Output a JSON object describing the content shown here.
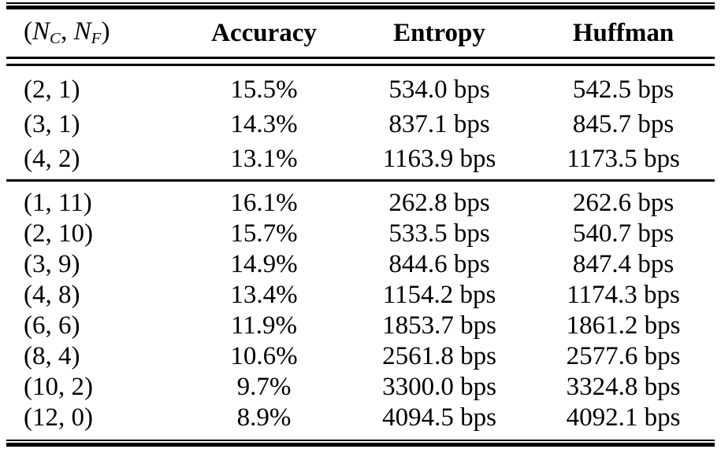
{
  "colors": {
    "text": "#000000",
    "background": "#ffffff",
    "rule": "#000000"
  },
  "table": {
    "header": {
      "col1": {
        "open": "(",
        "var1": "N",
        "sub1": "C",
        "sep": ", ",
        "var2": "N",
        "sub2": "F",
        "close": ")"
      },
      "accuracy": "Accuracy",
      "entropy": "Entropy",
      "huffman": "Huffman"
    },
    "groups": [
      {
        "rows": [
          {
            "pair": "(2, 1)",
            "accuracy": "15.5%",
            "entropy": "534.0 bps",
            "huffman": "542.5 bps"
          },
          {
            "pair": "(3, 1)",
            "accuracy": "14.3%",
            "entropy": "837.1 bps",
            "huffman": "845.7 bps"
          },
          {
            "pair": "(4, 2)",
            "accuracy": "13.1%",
            "entropy": "1163.9 bps",
            "huffman": "1173.5 bps"
          }
        ]
      },
      {
        "rows": [
          {
            "pair": "(1, 11)",
            "accuracy": "16.1%",
            "entropy": "262.8 bps",
            "huffman": "262.6 bps"
          },
          {
            "pair": "(2, 10)",
            "accuracy": "15.7%",
            "entropy": "533.5 bps",
            "huffman": "540.7 bps"
          },
          {
            "pair": "(3, 9)",
            "accuracy": "14.9%",
            "entropy": "844.6 bps",
            "huffman": "847.4 bps"
          },
          {
            "pair": "(4, 8)",
            "accuracy": "13.4%",
            "entropy": "1154.2 bps",
            "huffman": "1174.3 bps"
          },
          {
            "pair": "(6, 6)",
            "accuracy": "11.9%",
            "entropy": "1853.7 bps",
            "huffman": "1861.2 bps"
          },
          {
            "pair": "(8, 4)",
            "accuracy": "10.6%",
            "entropy": "2561.8 bps",
            "huffman": "2577.6 bps"
          },
          {
            "pair": "(10, 2)",
            "accuracy": "9.7%",
            "entropy": "3300.0 bps",
            "huffman": "3324.8 bps"
          },
          {
            "pair": "(12, 0)",
            "accuracy": "8.9%",
            "entropy": "4094.5 bps",
            "huffman": "4092.1 bps"
          }
        ]
      }
    ]
  }
}
